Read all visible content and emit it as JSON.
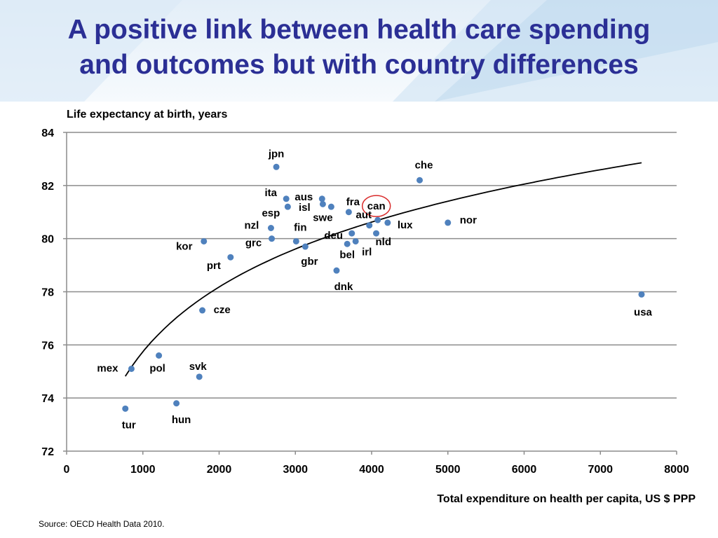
{
  "slide": {
    "title_line1": "A positive link between health care spending",
    "title_line2": "and outcomes but with country differences",
    "source": "Source: OECD Health Data 2010."
  },
  "colors": {
    "title": "#2b2f95",
    "point": "#4f81bd",
    "highlight_ring": "#d92b2b",
    "trend": "#000000",
    "grid": "#8c8c8c"
  },
  "chart_data": {
    "type": "scatter",
    "title": "",
    "ylabel": "Life expectancy at birth, years",
    "xlabel": "Total expenditure on health per capita, US $ PPP",
    "xlim": [
      0,
      8000
    ],
    "ylim": [
      72,
      84
    ],
    "xticks": [
      0,
      1000,
      2000,
      3000,
      4000,
      5000,
      6000,
      7000,
      8000
    ],
    "yticks": [
      72,
      74,
      76,
      78,
      80,
      82,
      84
    ],
    "grid": "horizontal",
    "highlight": "can",
    "trendline": "logarithmic",
    "points": [
      {
        "label": "jpn",
        "x": 2750,
        "y": 82.7
      },
      {
        "label": "che",
        "x": 4630,
        "y": 82.2
      },
      {
        "label": "ita",
        "x": 2880,
        "y": 81.5
      },
      {
        "label": "aus",
        "x": 3350,
        "y": 81.5
      },
      {
        "label": "isl",
        "x": 3470,
        "y": 81.2
      },
      {
        "label": "esp",
        "x": 2900,
        "y": 81.2
      },
      {
        "label": "fra",
        "x": 3700,
        "y": 81.0
      },
      {
        "label": "swe",
        "x": 3360,
        "y": 81.3
      },
      {
        "label": "can",
        "x": 4080,
        "y": 80.7
      },
      {
        "label": "aut",
        "x": 3970,
        "y": 80.5
      },
      {
        "label": "lux",
        "x": 4210,
        "y": 80.6
      },
      {
        "label": "nor",
        "x": 5000,
        "y": 80.6
      },
      {
        "label": "nzl",
        "x": 2680,
        "y": 80.4
      },
      {
        "label": "deu",
        "x": 3740,
        "y": 80.2
      },
      {
        "label": "nld",
        "x": 4060,
        "y": 80.2
      },
      {
        "label": "fin",
        "x": 3010,
        "y": 79.9
      },
      {
        "label": "grc",
        "x": 2690,
        "y": 80.0
      },
      {
        "label": "irl",
        "x": 3790,
        "y": 79.9
      },
      {
        "label": "bel",
        "x": 3680,
        "y": 79.8
      },
      {
        "label": "kor",
        "x": 1800,
        "y": 79.9
      },
      {
        "label": "gbr",
        "x": 3130,
        "y": 79.7
      },
      {
        "label": "prt",
        "x": 2150,
        "y": 79.3
      },
      {
        "label": "dnk",
        "x": 3540,
        "y": 78.8
      },
      {
        "label": "usa",
        "x": 7540,
        "y": 77.9
      },
      {
        "label": "cze",
        "x": 1780,
        "y": 77.3
      },
      {
        "label": "pol",
        "x": 1210,
        "y": 75.6
      },
      {
        "label": "mex",
        "x": 850,
        "y": 75.1
      },
      {
        "label": "svk",
        "x": 1740,
        "y": 74.8
      },
      {
        "label": "hun",
        "x": 1440,
        "y": 73.8
      },
      {
        "label": "tur",
        "x": 770,
        "y": 73.6
      }
    ]
  }
}
